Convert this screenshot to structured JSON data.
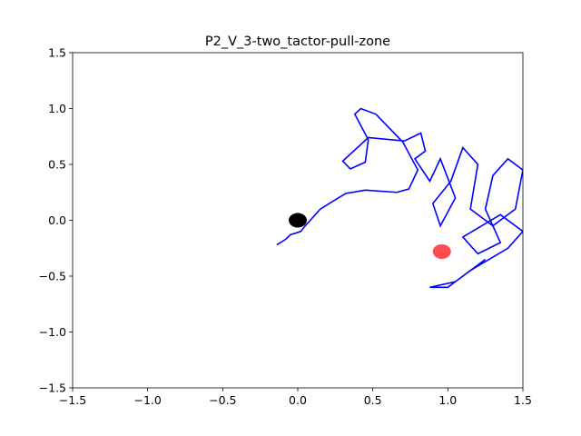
{
  "chart_data": {
    "type": "line",
    "title": "P2_V_3-two_tactor-pull-zone",
    "x": [
      -0.14,
      -0.08,
      -0.05,
      0.02,
      0.05,
      0.15,
      0.27,
      0.32,
      0.45,
      0.66,
      0.74,
      0.8,
      0.7,
      0.52,
      0.42,
      0.38,
      0.47,
      0.45,
      0.35,
      0.3,
      0.47,
      0.71,
      0.82,
      0.85,
      0.78,
      0.88,
      0.95,
      1.05,
      0.95,
      0.9,
      1.02,
      1.1,
      1.2,
      1.15,
      1.3,
      1.45,
      1.5,
      1.4,
      1.3,
      1.25,
      1.35,
      1.2,
      1.1,
      1.35,
      1.5,
      1.4,
      1.15,
      1.0,
      0.88,
      1.05,
      1.25
    ],
    "series": [
      {
        "color": "#0000ff",
        "values": [
          -0.22,
          -0.17,
          -0.13,
          -0.1,
          -0.05,
          0.1,
          0.2,
          0.24,
          0.27,
          0.25,
          0.28,
          0.45,
          0.7,
          0.95,
          1.0,
          0.95,
          0.72,
          0.52,
          0.46,
          0.53,
          0.74,
          0.71,
          0.78,
          0.62,
          0.55,
          0.35,
          0.55,
          0.2,
          -0.05,
          0.15,
          0.35,
          0.65,
          0.5,
          0.1,
          -0.05,
          0.1,
          0.45,
          0.55,
          0.4,
          0.1,
          -0.2,
          -0.3,
          -0.15,
          0.05,
          -0.1,
          -0.25,
          -0.45,
          -0.6,
          -0.6,
          -0.55,
          -0.35
        ]
      }
    ],
    "points": [
      {
        "x": 0,
        "y": 0,
        "color": "#000000"
      },
      {
        "x": 0.96,
        "y": -0.28,
        "color": "#ff0000"
      }
    ],
    "xlim": [
      -1.5,
      1.5
    ],
    "ylim": [
      -1.5,
      1.5
    ],
    "xticks": [
      {
        "value": -1.5,
        "label": "−1.5"
      },
      {
        "value": -1.0,
        "label": "−1.0"
      },
      {
        "value": -0.5,
        "label": "−0.5"
      },
      {
        "value": 0,
        "label": "0.0"
      },
      {
        "value": 0.5,
        "label": "0.5"
      },
      {
        "value": 1.0,
        "label": "1.0"
      },
      {
        "value": 1.5,
        "label": "1.5"
      }
    ],
    "yticks": [
      {
        "value": -1.5,
        "label": "−1.5"
      },
      {
        "value": -1.0,
        "label": "−1.0"
      },
      {
        "value": -0.5,
        "label": "−0.5"
      },
      {
        "value": 0,
        "label": "0.0"
      },
      {
        "value": 0.5,
        "label": "0.5"
      },
      {
        "value": 1.0,
        "label": "1.0"
      },
      {
        "value": 1.5,
        "label": "1.5"
      }
    ]
  }
}
